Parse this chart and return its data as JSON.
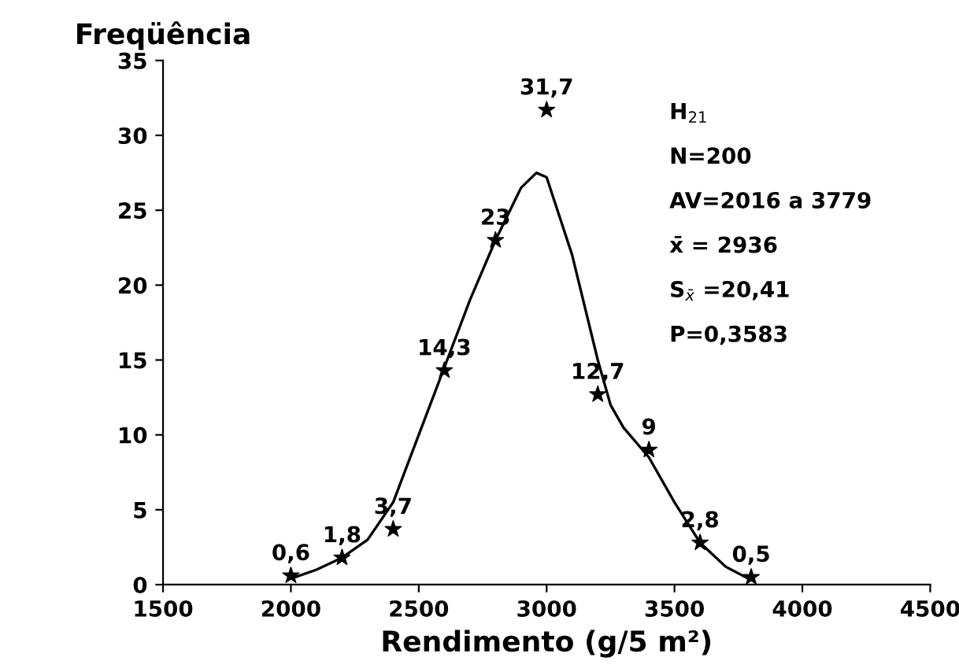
{
  "chart_data": {
    "type": "scatter",
    "ylabel": "Freqüência",
    "xlabel": "Rendimento (g/5 m²)",
    "x": [
      2000,
      2200,
      2400,
      2600,
      2800,
      3000,
      3200,
      3400,
      3600,
      3800
    ],
    "series": [
      {
        "color": "#000000",
        "marker": "star",
        "values": [
          0.6,
          1.8,
          3.7,
          14.3,
          23,
          31.7,
          12.7,
          9,
          2.8,
          0.5
        ],
        "value_labels": [
          "0,6",
          "1,8",
          "3,7",
          "14,3",
          "23",
          "31,7",
          "12,7",
          "9",
          "2,8",
          "0,5"
        ]
      },
      {
        "type": "line",
        "color": "#000000",
        "marker": "none",
        "line_style": "solid",
        "x": [
          2000,
          2100,
          2200,
          2300,
          2400,
          2500,
          2600,
          2700,
          2800,
          2900,
          2960,
          3000,
          3100,
          3200,
          3250,
          3300,
          3400,
          3500,
          3600,
          3700,
          3800
        ],
        "values": [
          0.4,
          1.0,
          1.8,
          3.0,
          5.5,
          10,
          14.5,
          19,
          23,
          26.5,
          27.5,
          27.2,
          22,
          15,
          12,
          10.5,
          8.5,
          5.5,
          2.8,
          1.2,
          0.3
        ]
      }
    ],
    "xlim": [
      1500,
      4500
    ],
    "xticks": [
      1500,
      2000,
      2500,
      3000,
      3500,
      4000,
      4500
    ],
    "ylim": [
      0,
      35
    ],
    "yticks": [
      0,
      5,
      10,
      15,
      20,
      25,
      30,
      35
    ],
    "grid": false,
    "legend": false,
    "annotations": [
      "H$_{21}$",
      "N=200",
      "AV=2016 a 3779",
      "x̄ = 2936",
      "S$_{x̄}$ =20,41",
      "P=0,3583"
    ]
  }
}
